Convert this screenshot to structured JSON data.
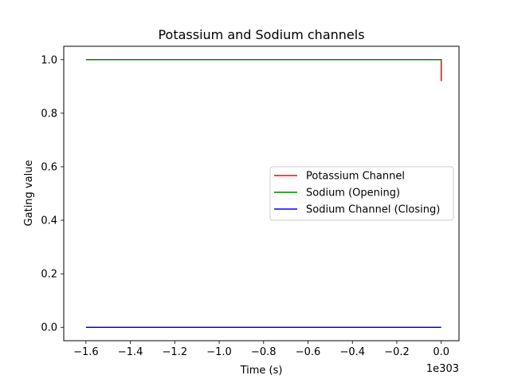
{
  "chart_data": {
    "type": "line",
    "title": "Potassium and Sodium channels",
    "xlabel": "Time (s)",
    "ylabel": "Gating value",
    "x_offset_text": "1e303",
    "xlim": [
      -1.7,
      0.08
    ],
    "ylim": [
      -0.05,
      1.05
    ],
    "x_ticks": [
      {
        "value": -1.6,
        "label": "−1.6"
      },
      {
        "value": -1.4,
        "label": "−1.4"
      },
      {
        "value": -1.2,
        "label": "−1.2"
      },
      {
        "value": -1.0,
        "label": "−1.0"
      },
      {
        "value": -0.8,
        "label": "−0.8"
      },
      {
        "value": -0.6,
        "label": "−0.6"
      },
      {
        "value": -0.4,
        "label": "−0.4"
      },
      {
        "value": -0.2,
        "label": "−0.2"
      },
      {
        "value": 0.0,
        "label": "0.0"
      }
    ],
    "y_ticks": [
      {
        "value": 0.0,
        "label": "0.0"
      },
      {
        "value": 0.2,
        "label": "0.2"
      },
      {
        "value": 0.4,
        "label": "0.4"
      },
      {
        "value": 0.6,
        "label": "0.6"
      },
      {
        "value": 0.8,
        "label": "0.8"
      },
      {
        "value": 1.0,
        "label": "1.0"
      }
    ],
    "grid": false,
    "legend_position": "center-right",
    "series": [
      {
        "name": "Potassium Channel",
        "color": "#ff0000",
        "x": [
          -1.6,
          0.0,
          0.0
        ],
        "y": [
          1.0,
          1.0,
          0.92
        ]
      },
      {
        "name": "Sodium (Opening)",
        "color": "#008000",
        "x": [
          -1.6,
          0.0,
          0.0
        ],
        "y": [
          1.0,
          1.0,
          0.995
        ]
      },
      {
        "name": "Sodium Channel (Closing)",
        "color": "#0000ff",
        "x": [
          -1.6,
          0.0
        ],
        "y": [
          0.0,
          0.0
        ]
      }
    ]
  }
}
